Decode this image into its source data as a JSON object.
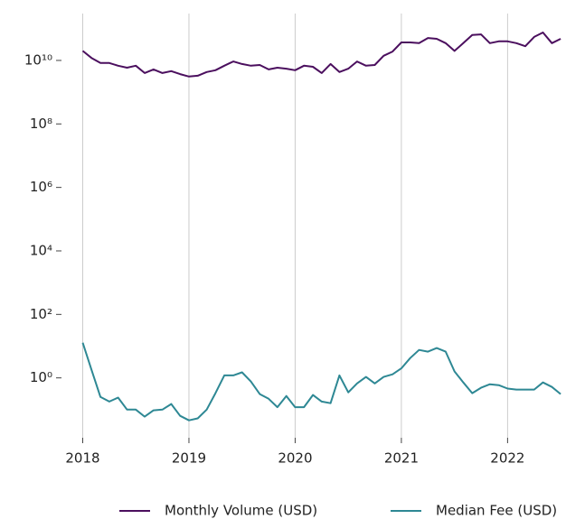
{
  "chart_data": {
    "type": "line",
    "x": [
      2018.0,
      2018.083,
      2018.167,
      2018.25,
      2018.333,
      2018.417,
      2018.5,
      2018.583,
      2018.667,
      2018.75,
      2018.833,
      2018.917,
      2019.0,
      2019.083,
      2019.167,
      2019.25,
      2019.333,
      2019.417,
      2019.5,
      2019.583,
      2019.667,
      2019.75,
      2019.833,
      2019.917,
      2020.0,
      2020.083,
      2020.167,
      2020.25,
      2020.333,
      2020.417,
      2020.5,
      2020.583,
      2020.667,
      2020.75,
      2020.833,
      2020.917,
      2021.0,
      2021.083,
      2021.167,
      2021.25,
      2021.333,
      2021.417,
      2021.5,
      2021.583,
      2021.667,
      2021.75,
      2021.833,
      2021.917,
      2022.0,
      2022.083,
      2022.167,
      2022.25,
      2022.333,
      2022.417,
      2022.5
    ],
    "series": [
      {
        "name": "Monthly Volume (USD)",
        "color": "#4b0f5e",
        "values": [
          20000000000.0,
          12000000000.0,
          8300000000.0,
          8300000000.0,
          6800000000.0,
          5900000000.0,
          6800000000.0,
          4000000000.0,
          5200000000.0,
          4000000000.0,
          4600000000.0,
          3700000000.0,
          3100000000.0,
          3300000000.0,
          4300000000.0,
          4900000000.0,
          6800000000.0,
          9300000000.0,
          7700000000.0,
          6800000000.0,
          7200000000.0,
          5200000000.0,
          5900000000.0,
          5500000000.0,
          4900000000.0,
          6800000000.0,
          6300000000.0,
          4000000000.0,
          7700000000.0,
          4300000000.0,
          5500000000.0,
          9300000000.0,
          6800000000.0,
          7200000000.0,
          14000000000.0,
          19000000000.0,
          37000000000.0,
          37000000000.0,
          35000000000.0,
          51000000000.0,
          48000000000.0,
          35000000000.0,
          20000000000.0,
          35000000000.0,
          63000000000.0,
          66000000000.0,
          35000000000.0,
          40000000000.0,
          40000000000.0,
          35000000000.0,
          28000000000.0,
          55000000000.0,
          76000000000.0,
          35000000000.0,
          48000000000.0
        ]
      },
      {
        "name": "Median Fee (USD)",
        "color": "#2e8894",
        "values": [
          12.8,
          1.8,
          0.25,
          0.18,
          0.24,
          0.1,
          0.1,
          0.06,
          0.095,
          0.1,
          0.15,
          0.064,
          0.046,
          0.053,
          0.1,
          0.33,
          1.2,
          1.2,
          1.5,
          0.77,
          0.31,
          0.22,
          0.12,
          0.27,
          0.12,
          0.12,
          0.29,
          0.18,
          0.16,
          1.2,
          0.35,
          0.67,
          1.07,
          0.67,
          1.07,
          1.3,
          2.0,
          4.2,
          7.6,
          6.7,
          8.7,
          6.7,
          1.6,
          0.72,
          0.33,
          0.49,
          0.63,
          0.59,
          0.46,
          0.43,
          0.43,
          0.43,
          0.72,
          0.52,
          0.31
        ]
      }
    ],
    "xlim": [
      2017.8,
      2022.55
    ],
    "xticks": [
      2018,
      2019,
      2020,
      2021,
      2022
    ],
    "ylim": [
      0.013,
      300000000000.0
    ],
    "log_y": true,
    "yticks": [
      {
        "value": 1,
        "label": "10⁰"
      },
      {
        "value": 100,
        "label": "10²"
      },
      {
        "value": 10000,
        "label": "10⁴"
      },
      {
        "value": 1000000,
        "label": "10⁶"
      },
      {
        "value": 100000000,
        "label": "10⁸"
      },
      {
        "value": 10000000000,
        "label": "10¹⁰"
      }
    ],
    "grid": "x",
    "legend": "bottom"
  }
}
